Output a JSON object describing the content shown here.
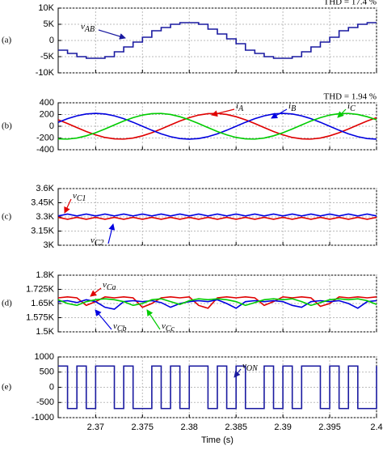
{
  "chart_data": [
    {
      "type": "line",
      "label": "(a)",
      "annotation": "THD = 17.4 %",
      "grid": true,
      "x": [
        2.366,
        2.367,
        2.368,
        2.369,
        2.37,
        2.371,
        2.372,
        2.373,
        2.374,
        2.375,
        2.376,
        2.377,
        2.378,
        2.379,
        2.38,
        2.381,
        2.382,
        2.383,
        2.384,
        2.385,
        2.386,
        2.387,
        2.388,
        2.389,
        2.39,
        2.391,
        2.392,
        2.393,
        2.394,
        2.395,
        2.396,
        2.397,
        2.398,
        2.399,
        2.4
      ],
      "xlim": [
        2.366,
        2.4
      ],
      "xticks": [
        2.37,
        2.375,
        2.38,
        2.385,
        2.39,
        2.395,
        2.4
      ],
      "ylim": [
        -10000,
        10000
      ],
      "yticks": [
        {
          "value": 10000,
          "label": "10K"
        },
        {
          "value": 5000,
          "label": "5K"
        },
        0,
        {
          "value": -5000,
          "label": "-5K"
        },
        {
          "value": -10000,
          "label": "-10K"
        }
      ],
      "series": [
        {
          "name": "vAB",
          "color": "#1a1aa0",
          "drawstyle": "steps",
          "values": [
            -3000,
            -4000,
            -5000,
            -5500,
            -5500,
            -5000,
            -3500,
            -2000,
            -500,
            1000,
            3000,
            4000,
            5000,
            5500,
            5500,
            5000,
            3500,
            2000,
            500,
            -1000,
            -3000,
            -4000,
            -5000,
            -5500,
            -5500,
            -5000,
            -3500,
            -2000,
            -500,
            1000,
            3000,
            4000,
            5000,
            5500,
            5500
          ]
        }
      ]
    },
    {
      "type": "line",
      "label": "(b)",
      "annotation": "THD = 1.94 %",
      "grid": true,
      "x": [
        2.366,
        2.367,
        2.368,
        2.369,
        2.37,
        2.371,
        2.372,
        2.373,
        2.374,
        2.375,
        2.376,
        2.377,
        2.378,
        2.379,
        2.38,
        2.381,
        2.382,
        2.383,
        2.384,
        2.385,
        2.386,
        2.387,
        2.388,
        2.389,
        2.39,
        2.391,
        2.392,
        2.393,
        2.394,
        2.395,
        2.396,
        2.397,
        2.398,
        2.399,
        2.4
      ],
      "xlim": [
        2.366,
        2.4
      ],
      "xticks": [
        2.37,
        2.375,
        2.38,
        2.385,
        2.39,
        2.395,
        2.4
      ],
      "ylim": [
        -400,
        400
      ],
      "yticks": [
        400,
        200,
        0,
        -200,
        -400
      ],
      "series": [
        {
          "name": "iA",
          "color": "#e00000",
          "values": [
            110,
            46,
            -23,
            -90,
            -147,
            -191,
            -215,
            -219,
            -201,
            -163,
            -110,
            -46,
            23,
            90,
            147,
            191,
            215,
            219,
            201,
            163,
            110,
            46,
            -23,
            -90,
            -147,
            -191,
            -215,
            -219,
            -201,
            -163,
            -110,
            -46,
            23,
            90,
            147
          ]
        },
        {
          "name": "iB",
          "color": "#0000e0",
          "values": [
            68,
            129,
            178,
            209,
            220,
            209,
            178,
            129,
            68,
            0,
            -68,
            -129,
            -178,
            -209,
            -220,
            -209,
            -178,
            -129,
            -68,
            0,
            68,
            129,
            178,
            209,
            220,
            209,
            178,
            129,
            68,
            0,
            -68,
            -129,
            -178,
            -209,
            -220
          ]
        },
        {
          "name": "iC",
          "color": "#00cc00",
          "values": [
            -215,
            -219,
            -201,
            -163,
            -110,
            -46,
            23,
            90,
            147,
            191,
            215,
            219,
            201,
            163,
            110,
            46,
            -23,
            -90,
            -147,
            -191,
            -215,
            -219,
            -201,
            -163,
            -110,
            -46,
            23,
            90,
            147,
            191,
            215,
            219,
            201,
            163,
            110
          ]
        }
      ]
    },
    {
      "type": "line",
      "label": "(c)",
      "grid": true,
      "x": [
        2.366,
        2.367,
        2.368,
        2.369,
        2.37,
        2.371,
        2.372,
        2.373,
        2.374,
        2.375,
        2.376,
        2.377,
        2.378,
        2.379,
        2.38,
        2.381,
        2.382,
        2.383,
        2.384,
        2.385,
        2.386,
        2.387,
        2.388,
        2.389,
        2.39,
        2.391,
        2.392,
        2.393,
        2.394,
        2.395,
        2.396,
        2.397,
        2.398,
        2.399,
        2.4
      ],
      "xlim": [
        2.366,
        2.4
      ],
      "xticks": [
        2.37,
        2.375,
        2.38,
        2.385,
        2.39,
        2.395,
        2.4
      ],
      "ylim": [
        3000,
        3600
      ],
      "yticks": [
        {
          "value": 3600,
          "label": "3.6K"
        },
        {
          "value": 3450,
          "label": "3.45K"
        },
        {
          "value": 3300,
          "label": "3.3K"
        },
        {
          "value": 3150,
          "label": "3.15K"
        },
        {
          "value": 3000,
          "label": "3K"
        }
      ],
      "series": [
        {
          "name": "vC1",
          "color": "#e00000",
          "values": [
            3295,
            3275,
            3295,
            3275,
            3295,
            3275,
            3295,
            3275,
            3295,
            3275,
            3295,
            3275,
            3295,
            3275,
            3295,
            3275,
            3295,
            3275,
            3295,
            3275,
            3295,
            3275,
            3295,
            3275,
            3295,
            3275,
            3295,
            3275,
            3295,
            3275,
            3295,
            3275,
            3295,
            3275,
            3295
          ]
        },
        {
          "name": "vC2",
          "color": "#0000e0",
          "values": [
            3310,
            3330,
            3310,
            3330,
            3310,
            3330,
            3310,
            3330,
            3310,
            3330,
            3310,
            3330,
            3310,
            3330,
            3310,
            3330,
            3310,
            3330,
            3310,
            3330,
            3310,
            3330,
            3310,
            3330,
            3310,
            3330,
            3310,
            3330,
            3310,
            3330,
            3310,
            3330,
            3310,
            3330,
            3310
          ]
        }
      ]
    },
    {
      "type": "line",
      "label": "(d)",
      "grid": true,
      "x": [
        2.366,
        2.367,
        2.368,
        2.369,
        2.37,
        2.371,
        2.372,
        2.373,
        2.374,
        2.375,
        2.376,
        2.377,
        2.378,
        2.379,
        2.38,
        2.381,
        2.382,
        2.383,
        2.384,
        2.385,
        2.386,
        2.387,
        2.388,
        2.389,
        2.39,
        2.391,
        2.392,
        2.393,
        2.394,
        2.395,
        2.396,
        2.397,
        2.398,
        2.399,
        2.4
      ],
      "xlim": [
        2.366,
        2.4
      ],
      "xticks": [
        2.37,
        2.375,
        2.38,
        2.385,
        2.39,
        2.395,
        2.4
      ],
      "ylim": [
        1500,
        1800
      ],
      "yticks": [
        {
          "value": 1800,
          "label": "1.8K"
        },
        {
          "value": 1725,
          "label": "1.725K"
        },
        {
          "value": 1650,
          "label": "1.65K"
        },
        {
          "value": 1575,
          "label": "1.575K"
        },
        {
          "value": 1500,
          "label": "1.5K"
        }
      ],
      "series": [
        {
          "name": "vCa",
          "color": "#e00000",
          "values": [
            1680,
            1685,
            1680,
            1640,
            1660,
            1685,
            1680,
            1685,
            1680,
            1630,
            1650,
            1680,
            1685,
            1680,
            1685,
            1640,
            1625,
            1680,
            1685,
            1680,
            1685,
            1680,
            1640,
            1660,
            1685,
            1680,
            1685,
            1680,
            1635,
            1650,
            1685,
            1680,
            1685,
            1680,
            1685
          ]
        },
        {
          "name": "vCb",
          "color": "#0000e0",
          "values": [
            1660,
            1665,
            1655,
            1670,
            1660,
            1630,
            1620,
            1660,
            1665,
            1660,
            1665,
            1655,
            1630,
            1650,
            1660,
            1665,
            1660,
            1670,
            1650,
            1625,
            1660,
            1665,
            1660,
            1665,
            1660,
            1640,
            1630,
            1660,
            1665,
            1660,
            1665,
            1650,
            1625,
            1660,
            1665
          ]
        },
        {
          "name": "vCc",
          "color": "#00cc00",
          "values": [
            1670,
            1650,
            1640,
            1660,
            1670,
            1675,
            1670,
            1660,
            1640,
            1650,
            1670,
            1675,
            1660,
            1645,
            1665,
            1675,
            1670,
            1675,
            1670,
            1660,
            1640,
            1655,
            1670,
            1675,
            1670,
            1675,
            1660,
            1640,
            1655,
            1670,
            1675,
            1670,
            1675,
            1665,
            1645
          ]
        }
      ]
    },
    {
      "type": "line",
      "label": "(e)",
      "grid": true,
      "xlabel": "Time (s)",
      "x": [
        2.366,
        2.367,
        2.368,
        2.369,
        2.37,
        2.371,
        2.372,
        2.373,
        2.374,
        2.375,
        2.376,
        2.377,
        2.378,
        2.379,
        2.38,
        2.381,
        2.382,
        2.383,
        2.384,
        2.385,
        2.386,
        2.387,
        2.388,
        2.389,
        2.39,
        2.391,
        2.392,
        2.393,
        2.394,
        2.395,
        2.396,
        2.397,
        2.398,
        2.399,
        2.4
      ],
      "xlim": [
        2.366,
        2.4
      ],
      "xticks": [
        2.37,
        2.375,
        2.38,
        2.385,
        2.39,
        2.395,
        2.4
      ],
      "ylim": [
        -1000,
        1000
      ],
      "yticks": [
        1000,
        500,
        0,
        -500,
        -1000
      ],
      "series": [
        {
          "name": "vON",
          "color": "#1a1aa0",
          "drawstyle": "steps",
          "values": [
            700,
            -700,
            700,
            -700,
            700,
            700,
            -700,
            700,
            -700,
            -700,
            700,
            -700,
            700,
            -700,
            700,
            700,
            -700,
            700,
            -700,
            700,
            -700,
            -700,
            700,
            -700,
            700,
            -700,
            700,
            700,
            -700,
            700,
            -700,
            700,
            -700,
            -700,
            700
          ]
        }
      ]
    }
  ]
}
